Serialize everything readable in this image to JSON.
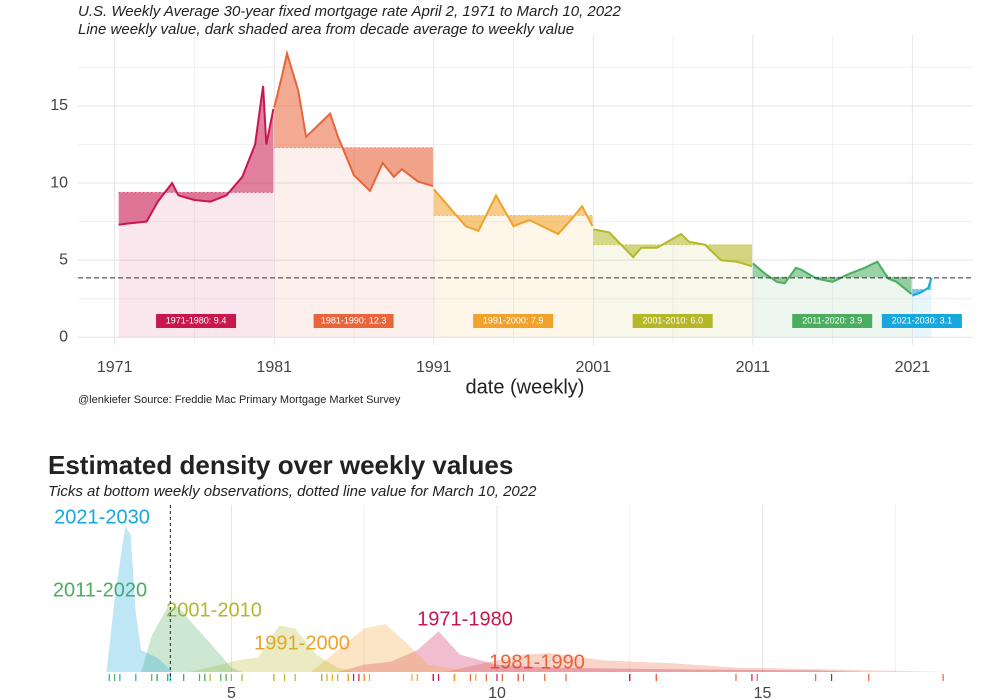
{
  "chart_data": [
    {
      "type": "line",
      "subtitle": "U.S. Weekly Average 30-year fixed mortgage rate April 2, 1971 to March 10, 2022",
      "subtitle2": "Line weekly value, dark shaded area from decade average to weekly value",
      "x_label": "date (weekly)",
      "source": "@lenkiefer Source: Freddie Mac Primary Mortgage Market Survey",
      "xlim": [
        1968.7,
        2024.8
      ],
      "ylim": [
        -0.5,
        19.6
      ],
      "xticks": [
        1971,
        1981,
        1991,
        2001,
        2011,
        2021
      ],
      "minor_xticks": [
        1976,
        1986,
        1996,
        2006,
        2016
      ],
      "yticks": [
        0,
        5,
        10,
        15
      ],
      "minor_yticks": [
        2.5,
        7.5,
        12.5,
        17.5
      ],
      "grid": true,
      "reference_value": 3.85,
      "series": [
        {
          "label": "1971-1980: 9.4",
          "average": 9.4,
          "color": "#c8174e",
          "x": [
            1971.25,
            1972,
            1973,
            1973.7,
            1974.6,
            1975,
            1976,
            1977,
            1978,
            1979,
            1979.8,
            1980.3,
            1980.5,
            1980.95
          ],
          "values": [
            7.3,
            7.4,
            7.5,
            8.8,
            10.0,
            9.2,
            8.9,
            8.8,
            9.2,
            10.4,
            12.5,
            16.3,
            12.5,
            14.8
          ]
        },
        {
          "label": "1981-1990: 12.3",
          "average": 12.3,
          "color": "#e8643a",
          "x": [
            1981,
            1981.5,
            1981.8,
            1982.5,
            1983,
            1984.5,
            1985,
            1986,
            1987,
            1987.8,
            1988.5,
            1989,
            1990,
            1990.95
          ],
          "values": [
            14.9,
            17.0,
            18.4,
            16.0,
            13.0,
            14.5,
            13.0,
            10.5,
            9.5,
            11.3,
            10.4,
            10.9,
            10.1,
            9.8
          ]
        },
        {
          "label": "1991-2000: 7.9",
          "average": 7.9,
          "color": "#f0a22a",
          "x": [
            1991,
            1992,
            1993,
            1993.8,
            1994.9,
            1996,
            1997,
            1998.8,
            1999.5,
            2000.3,
            2000.95
          ],
          "values": [
            9.6,
            8.4,
            7.2,
            6.9,
            9.2,
            7.2,
            7.6,
            6.7,
            7.5,
            8.5,
            7.2
          ]
        },
        {
          "label": "2001-2010: 6.0",
          "average": 6.0,
          "color": "#b5b728",
          "x": [
            2001,
            2002,
            2003.5,
            2004,
            2005,
            2006.5,
            2007,
            2008,
            2009,
            2010,
            2010.95
          ],
          "values": [
            7.0,
            6.8,
            5.2,
            5.8,
            5.8,
            6.7,
            6.2,
            6.0,
            5.0,
            4.9,
            4.6
          ]
        },
        {
          "label": "2011-2020: 3.9",
          "average": 3.9,
          "color": "#4aad5f",
          "x": [
            2011,
            2011.8,
            2012.5,
            2013,
            2013.7,
            2014,
            2015,
            2016,
            2017,
            2018,
            2018.8,
            2019.5,
            2020,
            2020.95
          ],
          "values": [
            4.8,
            4.1,
            3.6,
            3.5,
            4.5,
            4.4,
            3.8,
            3.6,
            4.1,
            4.5,
            4.9,
            3.8,
            3.6,
            2.8
          ]
        },
        {
          "label": "2021-2030: 3.1",
          "average": 3.1,
          "color": "#16a7dc",
          "x": [
            2021,
            2021.5,
            2022,
            2022.19
          ],
          "values": [
            2.7,
            2.9,
            3.2,
            3.85
          ]
        }
      ]
    },
    {
      "type": "area",
      "title": "Estimated density over weekly  values",
      "subtitle": "Ticks at bottom weekly observations, dotted line value for March 10, 2022",
      "xlim": [
        2.3,
        19
      ],
      "ylim": [
        0,
        1.15
      ],
      "xticks": [
        5,
        10,
        15
      ],
      "minor_xticks": [
        7.5,
        12.5,
        17.5
      ],
      "grid": true,
      "reference_value": 3.85,
      "series": [
        {
          "name": "1981-1990",
          "color": "#e8643a",
          "x": [
            9,
            9.5,
            10.5,
            11,
            12,
            13.3,
            14.5,
            16,
            18.5
          ],
          "values": [
            0,
            0.04,
            0.12,
            0.13,
            0.08,
            0.06,
            0.03,
            0.02,
            0
          ]
        },
        {
          "name": "1971-1980",
          "color": "#c8174e",
          "x": [
            7.0,
            7.5,
            8.0,
            8.5,
            8.9,
            9.3,
            10,
            11,
            13,
            16,
            17
          ],
          "values": [
            0,
            0.05,
            0.07,
            0.15,
            0.28,
            0.12,
            0.05,
            0.03,
            0.02,
            0.01,
            0
          ]
        },
        {
          "name": "1991-2000",
          "color": "#f0a22a",
          "x": [
            6.5,
            7.0,
            7.5,
            7.9,
            8.3,
            8.7,
            9.2,
            9.5
          ],
          "values": [
            0,
            0.15,
            0.3,
            0.33,
            0.2,
            0.05,
            0.02,
            0
          ]
        },
        {
          "name": "2001-2010",
          "color": "#b5b728",
          "x": [
            4.2,
            4.8,
            5.1,
            5.5,
            5.9,
            6.2,
            6.6,
            7.0,
            7.3
          ],
          "values": [
            0,
            0.05,
            0.08,
            0.1,
            0.32,
            0.3,
            0.12,
            0.03,
            0
          ]
        },
        {
          "name": "2011-2020",
          "color": "#4aad5f",
          "x": [
            3.3,
            3.5,
            3.8,
            4.0,
            4.3,
            4.6,
            5.0,
            5.2
          ],
          "values": [
            0,
            0.25,
            0.45,
            0.45,
            0.32,
            0.2,
            0.03,
            0
          ]
        },
        {
          "name": "2021-2030",
          "color": "#16a7dc",
          "x": [
            2.65,
            2.8,
            3.0,
            3.1,
            3.2,
            3.3,
            3.6,
            3.9
          ],
          "values": [
            0,
            0.5,
            1.0,
            0.95,
            0.4,
            0.15,
            0.1,
            0
          ]
        }
      ]
    }
  ]
}
